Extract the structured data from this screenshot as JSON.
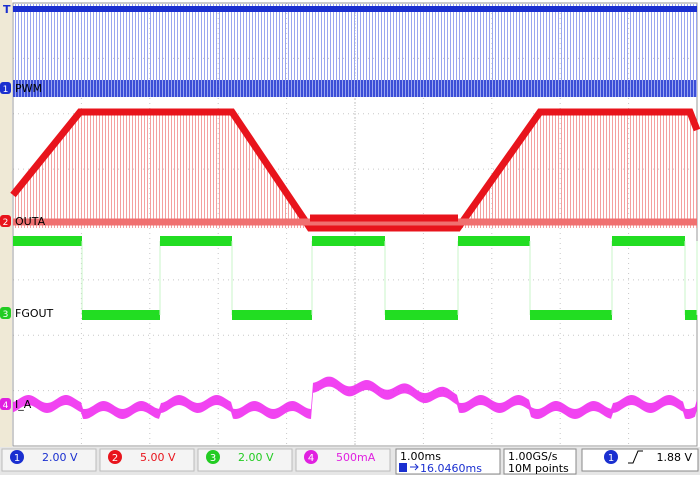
{
  "trigger_marker": "T",
  "channels": [
    {
      "number": "1",
      "label": "PWM",
      "scale": "2.00 V"
    },
    {
      "number": "2",
      "label": "OUTA",
      "scale": "5.00 V"
    },
    {
      "number": "3",
      "label": "FGOUT",
      "scale": "2.00 V"
    },
    {
      "number": "4",
      "label": "I_A",
      "scale": "500mA"
    }
  ],
  "timebase": {
    "scale": "1.00ms",
    "position": "16.0460ms"
  },
  "acquisition": {
    "rate": "1.00GS/s",
    "length": "10M points"
  },
  "trigger": {
    "source": "1",
    "level": "1.88 V"
  }
}
